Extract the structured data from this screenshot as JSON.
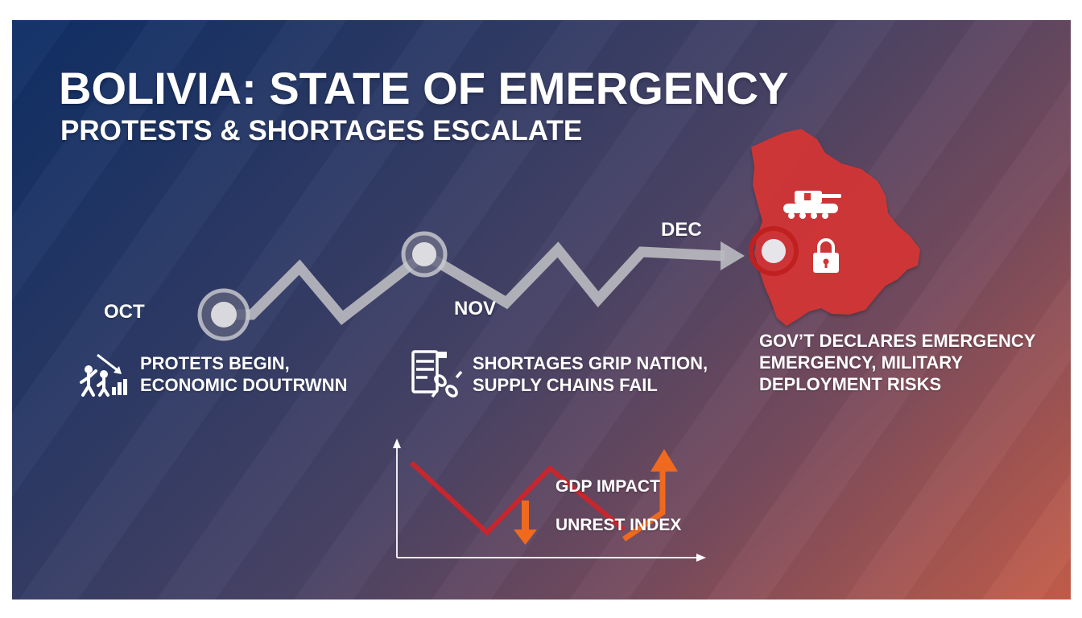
{
  "title": "BOLIVIA: STATE OF EMERGENCY",
  "subtitle": "PROTESTS & SHORTAGES ESCALATE",
  "timeline": {
    "months": [
      "OCT",
      "NOV",
      "DEC"
    ],
    "events": [
      {
        "lines": [
          "PROTETS BEGIN,",
          "ECONOMIC DOUTRWNN"
        ],
        "icon": "protesters-falling-chart-icon"
      },
      {
        "lines": [
          "SHORTAGES GRIP NATION,",
          "SUPPLY CHAINS FAIL"
        ],
        "icon": "broken-supply-chain-icon"
      },
      {
        "lines": [
          "GOV’T DECLARES EMERGENCY",
          "EMERGENCY, MILITARY",
          "DEPLOYMENT RISKS"
        ],
        "icon": "bolivia-map-icon"
      }
    ]
  },
  "map_icons": [
    "tank-icon",
    "padlock-icon",
    "location-marker-icon"
  ],
  "mini_chart": {
    "labels": [
      "GDP IMPACT",
      "UNREST INDEX"
    ]
  },
  "colors": {
    "bg_start": "#0f2f66",
    "bg_end": "#c65e4a",
    "map_red": "#d33434",
    "gdp_red": "#c8262e",
    "unrest_orange": "#ef6a1f",
    "timeline_gray": "#b9b9bf"
  }
}
